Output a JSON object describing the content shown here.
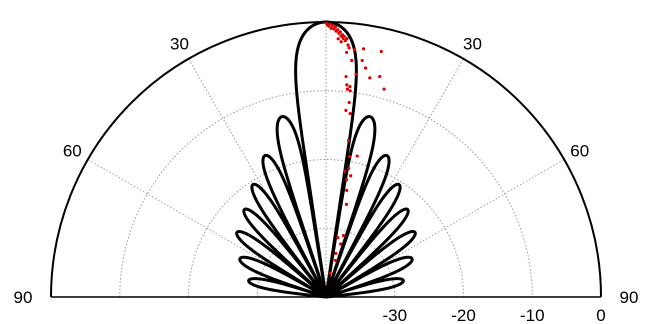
{
  "chart_data": {
    "type": "scatter",
    "coordinate_system": "polar-half",
    "title": "",
    "angle_ticks": [
      {
        "label": "90",
        "angle": -90
      },
      {
        "label": "60",
        "angle": -60
      },
      {
        "label": "30",
        "angle": -30
      },
      {
        "label": "30",
        "angle": 30
      },
      {
        "label": "60",
        "angle": 60
      },
      {
        "label": "90",
        "angle": 90
      }
    ],
    "radial_ticks": [
      {
        "label": "-30",
        "value": -30
      },
      {
        "label": "-20",
        "value": -20
      },
      {
        "label": "-10",
        "value": -10
      },
      {
        "label": "0",
        "value": 0
      }
    ],
    "rlim": [
      -40,
      0
    ],
    "grid": true,
    "colors": {
      "pattern": "#000000",
      "measured": "#e00000",
      "grid": "#9a9a9a",
      "axis": "#000000"
    },
    "series": [
      {
        "style": "line",
        "lobes": [
          {
            "center": 0,
            "half_width": 8.6,
            "peak": 0
          },
          {
            "center": 13.7,
            "half_width": 4.6,
            "peak": -13.0
          },
          {
            "center": -13.7,
            "half_width": 4.6,
            "peak": -13.0
          },
          {
            "center": 23.3,
            "half_width": 4.4,
            "peak": -17.6
          },
          {
            "center": -23.3,
            "half_width": 4.4,
            "peak": -17.6
          },
          {
            "center": 33.0,
            "half_width": 4.4,
            "peak": -20.5
          },
          {
            "center": -33.0,
            "half_width": 4.4,
            "peak": -20.5
          },
          {
            "center": 43.0,
            "half_width": 4.6,
            "peak": -22.6
          },
          {
            "center": -43.0,
            "half_width": 4.6,
            "peak": -22.6
          },
          {
            "center": 54.0,
            "half_width": 5.0,
            "peak": -24.0
          },
          {
            "center": -54.0,
            "half_width": 5.0,
            "peak": -24.0
          },
          {
            "center": 66.0,
            "half_width": 6.0,
            "peak": -26.3
          },
          {
            "center": -66.0,
            "half_width": 6.0,
            "peak": -26.3
          },
          {
            "center": 78.0,
            "half_width": 6.0,
            "peak": -28.5
          },
          {
            "center": -78.0,
            "half_width": 6.0,
            "peak": -28.5
          }
        ]
      },
      {
        "style": "points",
        "points": [
          {
            "angle": 0.1,
            "r": -0.2
          },
          {
            "angle": 0.3,
            "r": -0.4
          },
          {
            "angle": 0.6,
            "r": -0.6
          },
          {
            "angle": 0.8,
            "r": -0.3
          },
          {
            "angle": 1.1,
            "r": -0.9
          },
          {
            "angle": 1.4,
            "r": -0.5
          },
          {
            "angle": 1.7,
            "r": -1.0
          },
          {
            "angle": 2.0,
            "r": -0.7
          },
          {
            "angle": 2.2,
            "r": -1.3
          },
          {
            "angle": 2.5,
            "r": -1.1
          },
          {
            "angle": 2.8,
            "r": -1.6
          },
          {
            "angle": 3.1,
            "r": -1.4
          },
          {
            "angle": 3.3,
            "r": -2.0
          },
          {
            "angle": 3.6,
            "r": -1.8
          },
          {
            "angle": 3.8,
            "r": -2.3
          },
          {
            "angle": 4.0,
            "r": -2.0
          },
          {
            "angle": 4.3,
            "r": -2.6
          },
          {
            "angle": 4.6,
            "r": -2.3
          },
          {
            "angle": 3.4,
            "r": -2.8
          },
          {
            "angle": 2.7,
            "r": -2.4
          },
          {
            "angle": 5.0,
            "r": -3.2
          },
          {
            "angle": 5.3,
            "r": -3.6
          },
          {
            "angle": 6.6,
            "r": -3.8
          },
          {
            "angle": 8.6,
            "r": -3.5
          },
          {
            "angle": 4.8,
            "r": -4.3
          },
          {
            "angle": 8.7,
            "r": -5.2
          },
          {
            "angle": 9.8,
            "r": -6.2
          },
          {
            "angle": 12.7,
            "r": -3.4
          },
          {
            "angle": 6.2,
            "r": -5.4
          },
          {
            "angle": 11.3,
            "r": -7.5
          },
          {
            "angle": 13.7,
            "r": -7.0
          },
          {
            "angle": 7.7,
            "r": -7.3
          },
          {
            "angle": 5.2,
            "r": -7.8
          },
          {
            "angle": 5.6,
            "r": -9.0
          },
          {
            "angle": 5.9,
            "r": -9.6
          },
          {
            "angle": 6.5,
            "r": -9.2
          },
          {
            "angle": 6.7,
            "r": -9.8
          },
          {
            "angle": 15.6,
            "r": -8.6
          },
          {
            "angle": 6.8,
            "r": -11.5
          },
          {
            "angle": 6.1,
            "r": -12.7
          },
          {
            "angle": 7.5,
            "r": -13.1
          },
          {
            "angle": 8.2,
            "r": -17.0
          },
          {
            "angle": 9.5,
            "r": -19.3
          },
          {
            "angle": 12.5,
            "r": -19.0
          },
          {
            "angle": 10.0,
            "r": -21.0
          },
          {
            "angle": 11.5,
            "r": -22.0
          },
          {
            "angle": 8.5,
            "r": -21.5
          },
          {
            "angle": 9.9,
            "r": -22.7
          },
          {
            "angle": 11.0,
            "r": -24.2
          },
          {
            "angle": 12.5,
            "r": -26.2
          },
          {
            "angle": 15.8,
            "r": -30.7
          },
          {
            "angle": 15.4,
            "r": -32.0
          },
          {
            "angle": 11.2,
            "r": -31.2
          },
          {
            "angle": 12.8,
            "r": -33.5
          },
          {
            "angle": 14.6,
            "r": -34.5
          },
          {
            "angle": 10.0,
            "r": -36.5
          }
        ]
      }
    ]
  }
}
